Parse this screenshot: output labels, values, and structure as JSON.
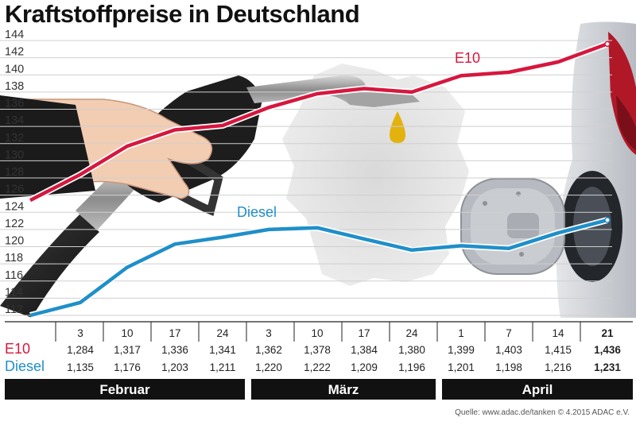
{
  "title": "Kraftstoffpreise in Deutschland",
  "source": "Quelle: www.adac.de/tanken  © 4.2015  ADAC e.V.",
  "colors": {
    "e10": "#d6173e",
    "diesel": "#1f8fc9",
    "grid": "#cfcfcf",
    "month_bar": "#111111"
  },
  "chart_data": {
    "type": "line",
    "title": "Kraftstoffpreise in Deutschland",
    "y_ticks": [
      "112",
      "114",
      "116",
      "118",
      "120",
      "122",
      "124",
      "126",
      "128",
      "130",
      "132",
      "134",
      "136",
      "138",
      "140",
      "142",
      "144"
    ],
    "ylim": [
      112,
      144
    ],
    "x": [
      "3",
      "10",
      "17",
      "24",
      "3",
      "10",
      "17",
      "24",
      "1",
      "7",
      "14",
      "21"
    ],
    "months": [
      "Februar",
      "März",
      "April"
    ],
    "series": [
      {
        "name": "E10",
        "label": "E10",
        "values": [
          128.4,
          131.7,
          133.6,
          134.1,
          136.2,
          137.8,
          138.4,
          138.0,
          139.9,
          140.3,
          141.5,
          143.6
        ],
        "labels": [
          "1,284",
          "1,317",
          "1,336",
          "1,341",
          "1,362",
          "1,378",
          "1,384",
          "1,380",
          "1,399",
          "1,403",
          "1,415",
          "1,436"
        ],
        "start_value": 125.4
      },
      {
        "name": "Diesel",
        "label": "Diesel",
        "values": [
          113.5,
          117.6,
          120.3,
          121.1,
          122.0,
          122.2,
          120.9,
          119.6,
          120.1,
          119.8,
          121.6,
          123.1
        ],
        "labels": [
          "1,135",
          "1,176",
          "1,203",
          "1,211",
          "1,220",
          "1,222",
          "1,209",
          "1,196",
          "1,201",
          "1,198",
          "1,216",
          "1,231"
        ],
        "start_value": 112.0
      }
    ]
  }
}
